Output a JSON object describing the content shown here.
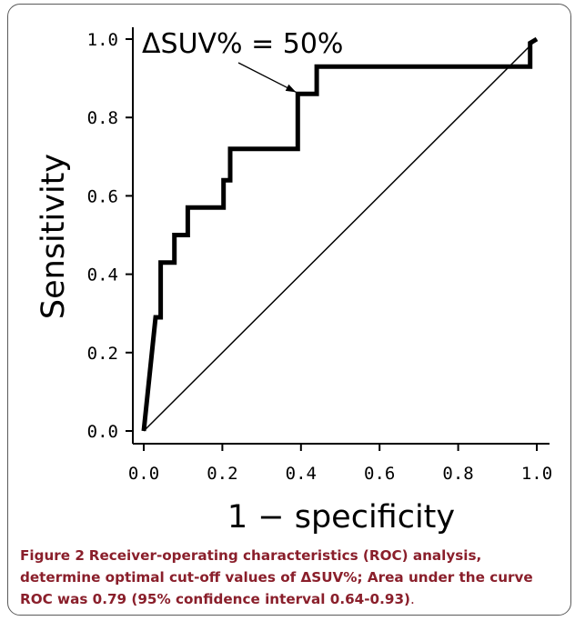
{
  "chart_data": {
    "type": "line",
    "xlabel": "1 − specificity",
    "ylabel": "Sensitivity",
    "xlim": [
      0.0,
      1.0
    ],
    "ylim": [
      0.0,
      1.0
    ],
    "xticks": [
      "0.0",
      "0.2",
      "0.4",
      "0.6",
      "0.8",
      "1.0"
    ],
    "yticks": [
      "0.0",
      "0.2",
      "0.4",
      "0.6",
      "0.8",
      "1.0"
    ],
    "grid": false,
    "series": [
      {
        "x": [
          0.0,
          0.03,
          0.043,
          0.043,
          0.078,
          0.078,
          0.112,
          0.112,
          0.203,
          0.203,
          0.22,
          0.22,
          0.392,
          0.392,
          0.44,
          0.44,
          0.983,
          0.983,
          1.0
        ],
        "y": [
          0.0,
          0.29,
          0.29,
          0.43,
          0.43,
          0.5,
          0.5,
          0.57,
          0.57,
          0.64,
          0.64,
          0.72,
          0.72,
          0.86,
          0.86,
          0.93,
          0.93,
          0.99,
          1.0
        ]
      },
      {
        "x": [
          0.0,
          1.0
        ],
        "y": [
          0.0,
          1.0
        ]
      }
    ],
    "annotation": {
      "text": "ΔSUV% = 50%",
      "x": 0.392,
      "y": 0.86
    }
  },
  "caption": {
    "label": "Figure 2",
    "text": "Receiver-operating characteristics (ROC) analysis, determine optimal cut-off values of ΔSUV%; Area under the curve ROC was 0.79 (95% confidence interval 0.64-0.93)",
    "end": "."
  },
  "colors": {
    "caption": "#8a1f2b",
    "curve": "#000000",
    "frame": "#5a5a5a"
  }
}
